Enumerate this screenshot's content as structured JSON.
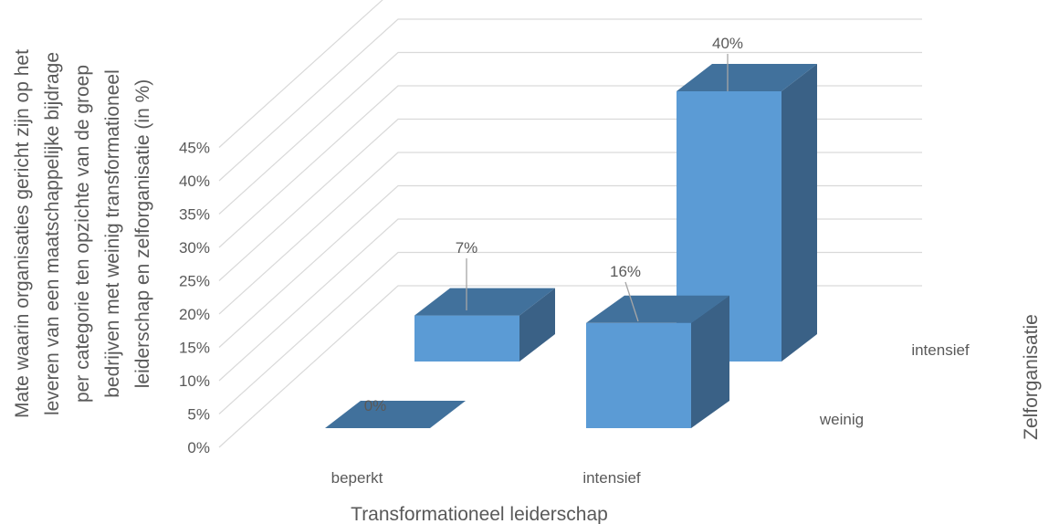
{
  "chart_data": {
    "type": "bar",
    "title": "",
    "xlabel": "Transformationeel leiderschap",
    "ylabel_lines": [
      "Mate waarin organisaties gericht zijn op het",
      "leveren van een maatschappelijke bijdrage",
      "per categorie ten opzichte van de groep",
      "bedrijven met weinig transformationeel",
      "leiderschap en zelforganisatie (in %)"
    ],
    "zlabel": "Zelforganisatie",
    "categories": [
      "beperkt",
      "intensief"
    ],
    "depth_categories": [
      "weinig",
      "intensief"
    ],
    "series": [
      {
        "name": "weinig",
        "values": [
          0,
          16
        ],
        "labels": [
          "0%",
          "16%"
        ]
      },
      {
        "name": "intensief",
        "values": [
          7,
          40
        ],
        "labels": [
          "7%",
          "40%"
        ]
      }
    ],
    "ylim": [
      0,
      45
    ],
    "yticks": [
      "0%",
      "5%",
      "10%",
      "15%",
      "20%",
      "25%",
      "30%",
      "35%",
      "40%",
      "45%"
    ],
    "grid": true,
    "colors": {
      "front": "#5b9bd5",
      "top": "#41719c",
      "side": "#3a6186"
    }
  }
}
